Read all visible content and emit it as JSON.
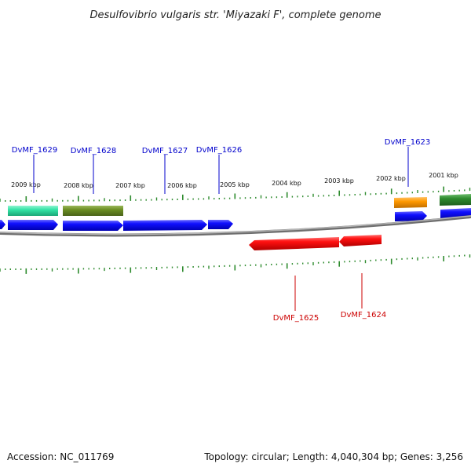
{
  "title": "Desulfovibrio vulgaris str. 'Miyazaki F', complete genome",
  "footer": {
    "accession": "Accession: NC_011769",
    "summary": "Topology: circular; Length: 4,040,304 bp; Genes: 3,256"
  },
  "colors": {
    "backbone": "#8a8a8a",
    "tick": "#2e8b2e",
    "forward_label": "#0000cc",
    "reverse_label": "#cc0000",
    "cds": "#0000ff",
    "rrna_like": "#33e3a6",
    "olive": "#6b8e23",
    "orange": "#ff9900",
    "dark_green": "#2e8b2e",
    "reverse_cds": "#ff0000"
  },
  "scale_labels": [
    "2009 kbp",
    "2008 kbp",
    "2007 kbp",
    "2006 kbp",
    "2005 kbp",
    "2004 kbp",
    "2003 kbp",
    "2002 kbp",
    "2001 kbp"
  ],
  "forward_gene_labels": [
    "DvMF_1629",
    "DvMF_1628",
    "DvMF_1627",
    "DvMF_1626",
    "DvMF_1623"
  ],
  "reverse_gene_labels": [
    "DvMF_1625",
    "DvMF_1624"
  ],
  "features": [
    {
      "id": "f1",
      "color": "cds",
      "strand": "+"
    },
    {
      "id": "f2",
      "color": "cds",
      "strand": "+"
    },
    {
      "id": "f3",
      "color": "cds",
      "strand": "+"
    },
    {
      "id": "f4",
      "color": "cds",
      "strand": "+"
    },
    {
      "id": "f5",
      "color": "cds",
      "strand": "+"
    },
    {
      "id": "f6",
      "color": "cds",
      "strand": "+"
    },
    {
      "id": "f7",
      "color": "cds",
      "strand": "+"
    },
    {
      "id": "f8",
      "color": "rrna_like",
      "strand": "+"
    },
    {
      "id": "f9",
      "color": "olive",
      "strand": "+"
    },
    {
      "id": "f10",
      "color": "orange",
      "strand": "+"
    },
    {
      "id": "f11",
      "color": "dark_green",
      "strand": "+"
    },
    {
      "id": "f12",
      "color": "reverse_cds",
      "strand": "-"
    },
    {
      "id": "f13",
      "color": "reverse_cds",
      "strand": "-"
    }
  ]
}
